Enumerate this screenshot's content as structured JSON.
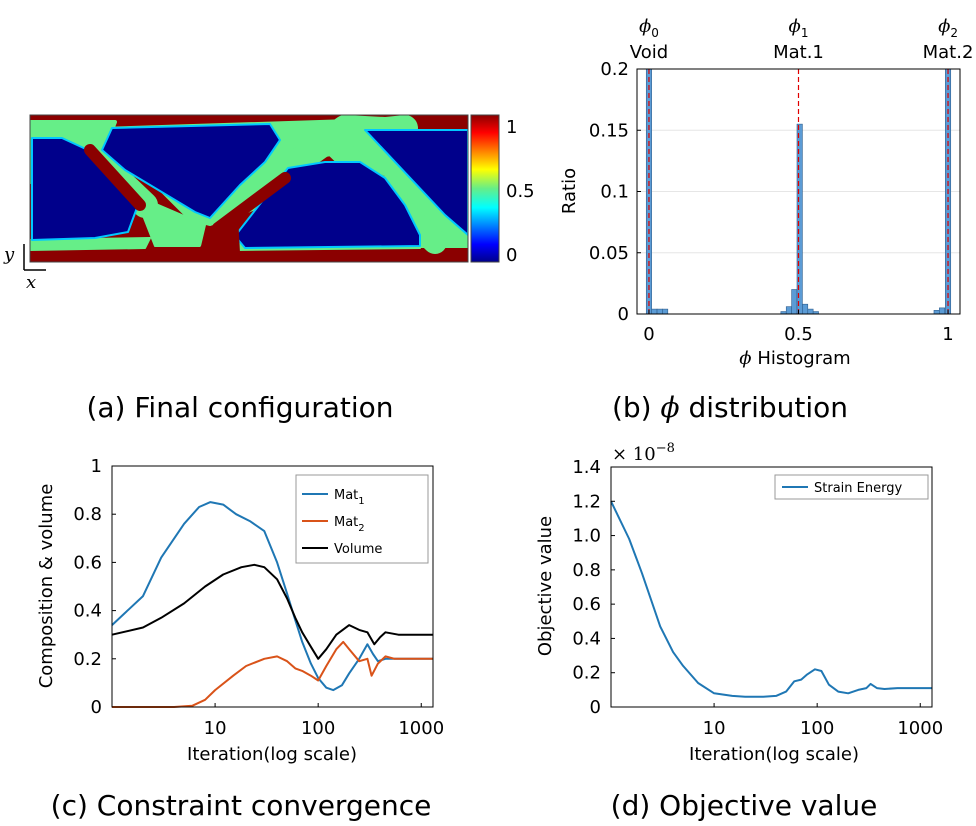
{
  "captions": {
    "a": "(a) Final configuration",
    "b_prefix": "(b)",
    "b_symbol": "ϕ",
    "b_suffix": "distribution",
    "c": "(c) Constraint convergence",
    "d": "(d) Objective value"
  },
  "panel_a": {
    "colorbar_ticks": [
      "1",
      "0.5",
      "0"
    ],
    "axis_y": "y",
    "axis_x": "x",
    "colors": {
      "high": "#8b0000",
      "mid": "#66ee88",
      "low": "#00008b"
    }
  },
  "chart_data": [
    {
      "id": "phi-histogram",
      "type": "bar",
      "title": "",
      "xlabel_symbol": "ϕ",
      "xlabel_text": "Histogram",
      "ylabel": "Ratio",
      "xlim": [
        -0.04,
        1.04
      ],
      "ylim": [
        0,
        0.2
      ],
      "xticks": [
        {
          "v": 0,
          "label": "0"
        },
        {
          "v": 0.5,
          "label": "0.5"
        },
        {
          "v": 1,
          "label": "1"
        }
      ],
      "yticks": [
        {
          "v": 0,
          "label": "0"
        },
        {
          "v": 0.05,
          "label": "0.05"
        },
        {
          "v": 0.1,
          "label": "0.1"
        },
        {
          "v": 0.15,
          "label": "0.15"
        },
        {
          "v": 0.2,
          "label": "0.2"
        }
      ],
      "bin_width": 0.018,
      "bars": [
        {
          "x": 0.0,
          "h": 0.2
        },
        {
          "x": 0.018,
          "h": 0.004
        },
        {
          "x": 0.036,
          "h": 0.004
        },
        {
          "x": 0.054,
          "h": 0.004
        },
        {
          "x": 0.45,
          "h": 0.002
        },
        {
          "x": 0.468,
          "h": 0.006
        },
        {
          "x": 0.486,
          "h": 0.02
        },
        {
          "x": 0.504,
          "h": 0.155
        },
        {
          "x": 0.522,
          "h": 0.008
        },
        {
          "x": 0.54,
          "h": 0.004
        },
        {
          "x": 0.558,
          "h": 0.002
        },
        {
          "x": 0.962,
          "h": 0.003
        },
        {
          "x": 0.98,
          "h": 0.005
        },
        {
          "x": 1.0,
          "h": 0.2
        }
      ],
      "phases": [
        {
          "x": 0,
          "symbol": "ϕ",
          "sub": "0",
          "label": "Void"
        },
        {
          "x": 0.5,
          "symbol": "ϕ",
          "sub": "1",
          "label": "Mat.1"
        },
        {
          "x": 1,
          "symbol": "ϕ",
          "sub": "2",
          "label": "Mat.2"
        }
      ]
    },
    {
      "id": "constraint-convergence",
      "type": "line",
      "xscale": "log",
      "xlabel": "Iteration(log scale)",
      "ylabel": "Composition & volume",
      "xlim": [
        1,
        1300
      ],
      "ylim": [
        0,
        1
      ],
      "xticks": [
        {
          "v": 10,
          "label": "10"
        },
        {
          "v": 100,
          "label": "100"
        },
        {
          "v": 1000,
          "label": "1000"
        }
      ],
      "yticks": [
        {
          "v": 0,
          "label": "0"
        },
        {
          "v": 0.2,
          "label": "0.2"
        },
        {
          "v": 0.4,
          "label": "0.4"
        },
        {
          "v": 0.6,
          "label": "0.6"
        },
        {
          "v": 0.8,
          "label": "0.8"
        },
        {
          "v": 1,
          "label": "1"
        }
      ],
      "legend": "top-right",
      "series": [
        {
          "name": "Mat",
          "sub": "1",
          "color": "#1f77b4",
          "points": [
            [
              1,
              0.34
            ],
            [
              2,
              0.46
            ],
            [
              3,
              0.62
            ],
            [
              5,
              0.76
            ],
            [
              7,
              0.83
            ],
            [
              9,
              0.85
            ],
            [
              12,
              0.84
            ],
            [
              16,
              0.8
            ],
            [
              22,
              0.77
            ],
            [
              30,
              0.73
            ],
            [
              40,
              0.6
            ],
            [
              50,
              0.47
            ],
            [
              60,
              0.36
            ],
            [
              70,
              0.27
            ],
            [
              85,
              0.18
            ],
            [
              100,
              0.12
            ],
            [
              120,
              0.08
            ],
            [
              140,
              0.07
            ],
            [
              170,
              0.09
            ],
            [
              200,
              0.14
            ],
            [
              250,
              0.2
            ],
            [
              300,
              0.26
            ],
            [
              340,
              0.22
            ],
            [
              380,
              0.19
            ],
            [
              450,
              0.2
            ],
            [
              600,
              0.2
            ],
            [
              1300,
              0.2
            ]
          ]
        },
        {
          "name": "Mat",
          "sub": "2",
          "color": "#d95319",
          "points": [
            [
              1,
              0.0
            ],
            [
              4,
              0.0
            ],
            [
              6,
              0.005
            ],
            [
              8,
              0.03
            ],
            [
              10,
              0.07
            ],
            [
              15,
              0.13
            ],
            [
              20,
              0.17
            ],
            [
              30,
              0.2
            ],
            [
              40,
              0.21
            ],
            [
              50,
              0.19
            ],
            [
              60,
              0.16
            ],
            [
              70,
              0.15
            ],
            [
              85,
              0.13
            ],
            [
              100,
              0.11
            ],
            [
              120,
              0.17
            ],
            [
              150,
              0.24
            ],
            [
              175,
              0.27
            ],
            [
              200,
              0.24
            ],
            [
              250,
              0.19
            ],
            [
              300,
              0.2
            ],
            [
              330,
              0.13
            ],
            [
              380,
              0.18
            ],
            [
              450,
              0.21
            ],
            [
              550,
              0.2
            ],
            [
              1300,
              0.2
            ]
          ]
        },
        {
          "name": "Volume",
          "sub": "",
          "color": "#000000",
          "points": [
            [
              1,
              0.3
            ],
            [
              2,
              0.33
            ],
            [
              3,
              0.37
            ],
            [
              5,
              0.43
            ],
            [
              8,
              0.5
            ],
            [
              12,
              0.55
            ],
            [
              18,
              0.58
            ],
            [
              24,
              0.59
            ],
            [
              30,
              0.58
            ],
            [
              40,
              0.53
            ],
            [
              50,
              0.45
            ],
            [
              60,
              0.37
            ],
            [
              70,
              0.31
            ],
            [
              85,
              0.25
            ],
            [
              100,
              0.2
            ],
            [
              120,
              0.24
            ],
            [
              150,
              0.3
            ],
            [
              200,
              0.34
            ],
            [
              250,
              0.32
            ],
            [
              300,
              0.31
            ],
            [
              350,
              0.26
            ],
            [
              400,
              0.29
            ],
            [
              450,
              0.31
            ],
            [
              600,
              0.3
            ],
            [
              1300,
              0.3
            ]
          ]
        }
      ]
    },
    {
      "id": "objective-value",
      "type": "line",
      "xscale": "log",
      "xlabel": "Iteration(log scale)",
      "ylabel": "Objective value",
      "exponent_prefix": "× 10",
      "exponent_power": "−8",
      "xlim": [
        1,
        1300
      ],
      "ylim": [
        0,
        1.4
      ],
      "xticks": [
        {
          "v": 10,
          "label": "10"
        },
        {
          "v": 100,
          "label": "100"
        },
        {
          "v": 1000,
          "label": "1000"
        }
      ],
      "yticks": [
        {
          "v": 0,
          "label": "0"
        },
        {
          "v": 0.2,
          "label": "0.2"
        },
        {
          "v": 0.4,
          "label": "0.4"
        },
        {
          "v": 0.6,
          "label": "0.6"
        },
        {
          "v": 0.8,
          "label": "0.8"
        },
        {
          "v": 1.0,
          "label": "1.0"
        },
        {
          "v": 1.2,
          "label": "1.2"
        },
        {
          "v": 1.4,
          "label": "1.4"
        }
      ],
      "legend": "top-right",
      "series": [
        {
          "name": "Strain Energy",
          "sub": "",
          "color": "#1f77b4",
          "points": [
            [
              1,
              1.2
            ],
            [
              1.5,
              0.98
            ],
            [
              2,
              0.78
            ],
            [
              3,
              0.47
            ],
            [
              4,
              0.32
            ],
            [
              5,
              0.24
            ],
            [
              7,
              0.14
            ],
            [
              10,
              0.08
            ],
            [
              15,
              0.065
            ],
            [
              20,
              0.06
            ],
            [
              30,
              0.06
            ],
            [
              40,
              0.065
            ],
            [
              50,
              0.09
            ],
            [
              60,
              0.15
            ],
            [
              70,
              0.16
            ],
            [
              80,
              0.19
            ],
            [
              95,
              0.22
            ],
            [
              110,
              0.21
            ],
            [
              130,
              0.13
            ],
            [
              160,
              0.09
            ],
            [
              200,
              0.08
            ],
            [
              250,
              0.1
            ],
            [
              300,
              0.11
            ],
            [
              330,
              0.135
            ],
            [
              380,
              0.11
            ],
            [
              450,
              0.105
            ],
            [
              600,
              0.11
            ],
            [
              1300,
              0.11
            ]
          ]
        }
      ]
    }
  ]
}
